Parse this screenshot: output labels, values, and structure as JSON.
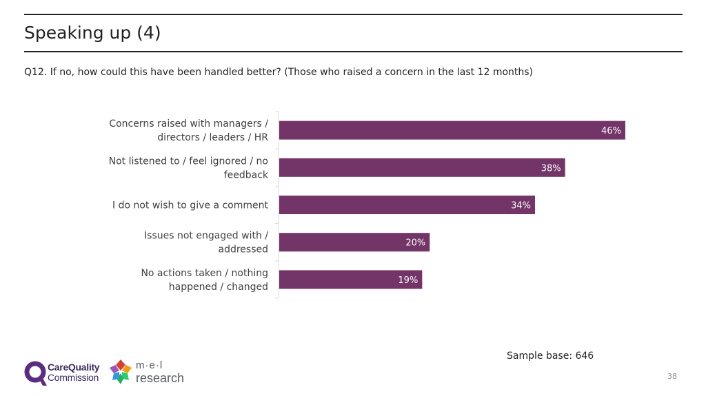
{
  "slide": {
    "title": "Speaking up (4)",
    "question": "Q12. If no, how could this have been handled better? (Those who raised a concern in the last 12 months)",
    "sample_base": "Sample base: 646",
    "page_number": "38"
  },
  "logos": {
    "cqc": {
      "line1": "CareQuality",
      "line2": "Commission"
    },
    "mel": {
      "line1": "m·e·l",
      "line2": "research"
    }
  },
  "colors": {
    "bar": "#733468",
    "bar_label": "#ffffff",
    "axis": "#d9d9d9",
    "text": "#404040"
  },
  "chart_data": {
    "type": "bar",
    "orientation": "horizontal",
    "categories": [
      [
        "Concerns raised with managers /",
        "directors / leaders / HR"
      ],
      [
        "Not listened to / feel ignored / no",
        "feedback"
      ],
      [
        "I do not wish to give a comment"
      ],
      [
        "Issues not engaged with /",
        "addressed"
      ],
      [
        "No actions taken / nothing",
        "happened / changed"
      ]
    ],
    "values": [
      46,
      38,
      34,
      20,
      19
    ],
    "value_labels": [
      "46%",
      "38%",
      "34%",
      "20%",
      "19%"
    ],
    "unit": "%",
    "xlim": [
      0,
      50
    ],
    "grid": false,
    "legend": "none"
  }
}
